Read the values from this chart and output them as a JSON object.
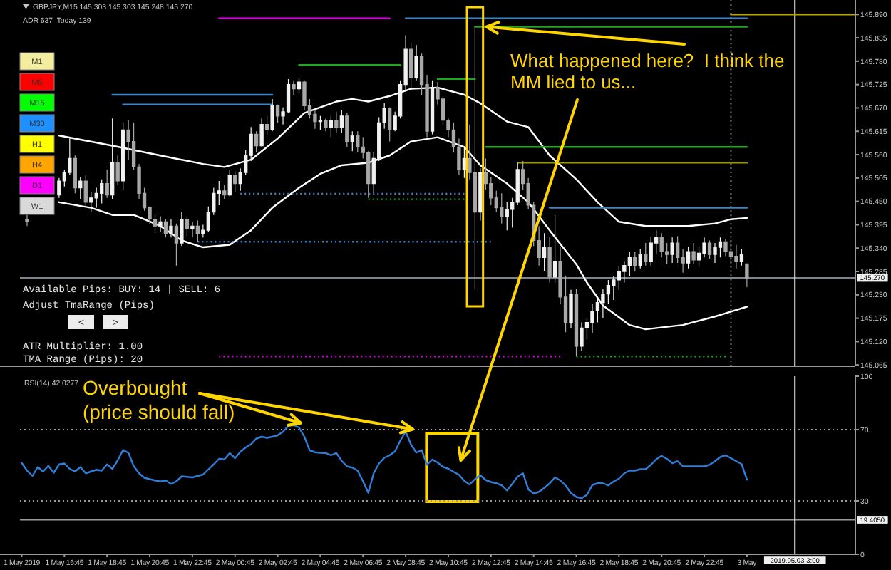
{
  "chart_data": [
    {
      "type": "candlestick",
      "title": "GBPJPY,M15 145.303 145.303 145.248 145.270",
      "subtitle": "ADR 637  Today 139",
      "x": [
        "2019-05-01T15:00",
        "2019-05-01T16:30",
        "2019-05-01T16:45",
        "2019-05-01T17:00",
        "2019-05-01T17:15",
        "2019-05-01T17:30",
        "2019-05-01T17:45",
        "2019-05-01T18:00",
        "2019-05-01T18:15",
        "2019-05-01T18:30",
        "2019-05-01T18:45",
        "2019-05-01T19:00",
        "2019-05-01T19:15",
        "2019-05-01T19:30",
        "2019-05-01T19:45",
        "2019-05-01T20:00",
        "2019-05-01T20:15",
        "2019-05-01T20:30",
        "2019-05-01T20:45",
        "2019-05-01T21:00",
        "2019-05-01T21:15",
        "2019-05-01T21:30",
        "2019-05-01T21:45",
        "2019-05-01T22:00",
        "2019-05-01T22:15",
        "2019-05-01T22:30",
        "2019-05-01T22:45",
        "2019-05-01T23:00",
        "2019-05-01T23:15",
        "2019-05-01T23:30",
        "2019-05-01T23:45",
        "2019-05-02T00:00",
        "2019-05-02T00:15",
        "2019-05-02T00:30",
        "2019-05-02T00:45",
        "2019-05-02T01:00",
        "2019-05-02T01:15",
        "2019-05-02T01:30",
        "2019-05-02T01:45",
        "2019-05-02T02:00",
        "2019-05-02T02:15",
        "2019-05-02T02:30",
        "2019-05-02T02:45",
        "2019-05-02T03:00",
        "2019-05-02T03:15",
        "2019-05-02T03:30",
        "2019-05-02T03:45",
        "2019-05-02T04:00",
        "2019-05-02T04:15",
        "2019-05-02T04:30",
        "2019-05-02T04:45",
        "2019-05-02T05:00",
        "2019-05-02T05:15",
        "2019-05-02T05:30",
        "2019-05-02T05:45",
        "2019-05-02T06:00",
        "2019-05-02T06:15",
        "2019-05-02T06:30",
        "2019-05-02T06:45",
        "2019-05-02T07:00",
        "2019-05-02T07:15",
        "2019-05-02T07:30",
        "2019-05-02T07:45",
        "2019-05-02T08:00",
        "2019-05-02T08:15",
        "2019-05-02T08:30",
        "2019-05-02T08:45",
        "2019-05-02T09:00",
        "2019-05-02T09:15",
        "2019-05-02T09:30",
        "2019-05-02T09:45",
        "2019-05-02T10:00",
        "2019-05-02T10:15",
        "2019-05-02T10:30",
        "2019-05-02T10:45",
        "2019-05-02T11:00",
        "2019-05-02T11:15",
        "2019-05-02T11:30",
        "2019-05-02T11:45",
        "2019-05-02T12:00",
        "2019-05-02T12:15",
        "2019-05-02T12:30",
        "2019-05-02T12:45",
        "2019-05-02T13:00",
        "2019-05-02T13:15",
        "2019-05-02T13:30",
        "2019-05-02T13:45",
        "2019-05-02T14:00",
        "2019-05-02T14:15",
        "2019-05-02T14:30",
        "2019-05-02T14:45",
        "2019-05-02T15:00",
        "2019-05-02T15:15",
        "2019-05-02T15:30",
        "2019-05-02T15:45",
        "2019-05-02T16:00",
        "2019-05-02T16:15",
        "2019-05-02T16:30",
        "2019-05-02T16:45",
        "2019-05-02T17:00",
        "2019-05-02T17:15",
        "2019-05-02T17:30",
        "2019-05-02T17:45",
        "2019-05-02T18:00",
        "2019-05-02T18:15",
        "2019-05-02T18:30",
        "2019-05-02T18:45",
        "2019-05-02T19:00",
        "2019-05-02T19:15",
        "2019-05-02T19:30",
        "2019-05-02T19:45",
        "2019-05-02T20:00",
        "2019-05-02T20:15",
        "2019-05-02T20:30",
        "2019-05-02T20:45",
        "2019-05-02T21:00",
        "2019-05-02T21:15",
        "2019-05-02T21:30",
        "2019-05-02T21:45",
        "2019-05-02T22:00",
        "2019-05-02T22:15",
        "2019-05-02T22:30",
        "2019-05-02T22:45",
        "2019-05-02T23:00",
        "2019-05-02T23:15",
        "2019-05-02T23:30",
        "2019-05-02T23:45",
        "2019-05-03T00:00",
        "2019-05-03T00:15",
        "2019-05-03T00:30",
        "2019-05-03T00:45"
      ],
      "ohlc": [
        [
          145.408,
          145.418,
          145.392,
          145.402
        ],
        [
          145.465,
          145.505,
          145.458,
          145.498
        ],
        [
          145.498,
          145.525,
          145.485,
          145.518
        ],
        [
          145.518,
          145.601,
          145.512,
          145.551
        ],
        [
          145.551,
          145.558,
          145.469,
          145.482
        ],
        [
          145.482,
          145.508,
          145.455,
          145.498
        ],
        [
          145.498,
          145.512,
          145.438,
          145.448
        ],
        [
          145.448,
          145.472,
          145.425,
          145.458
        ],
        [
          145.458,
          145.482,
          145.435,
          145.469
        ],
        [
          145.469,
          145.502,
          145.445,
          145.492
        ],
        [
          145.492,
          145.525,
          145.458,
          145.465
        ],
        [
          145.465,
          145.645,
          145.455,
          145.541
        ],
        [
          145.541,
          145.558,
          145.488,
          145.498
        ],
        [
          145.498,
          145.635,
          145.478,
          145.618
        ],
        [
          145.618,
          145.641,
          145.548,
          145.591
        ],
        [
          145.591,
          145.635,
          145.525,
          145.531
        ],
        [
          145.531,
          145.538,
          145.455,
          145.469
        ],
        [
          145.469,
          145.482,
          145.428,
          145.435
        ],
        [
          145.435,
          145.438,
          145.398,
          145.408
        ],
        [
          145.408,
          145.421,
          145.375,
          145.392
        ],
        [
          145.392,
          145.415,
          145.378,
          145.402
        ],
        [
          145.402,
          145.408,
          145.365,
          145.375
        ],
        [
          145.375,
          145.408,
          145.365,
          145.392
        ],
        [
          145.392,
          145.398,
          145.299,
          145.352
        ],
        [
          145.352,
          145.425,
          145.345,
          145.408
        ],
        [
          145.408,
          145.415,
          145.368,
          145.385
        ],
        [
          145.385,
          145.402,
          145.365,
          145.392
        ],
        [
          145.392,
          145.405,
          145.355,
          145.375
        ],
        [
          145.375,
          145.395,
          145.365,
          145.382
        ],
        [
          145.382,
          145.438,
          145.378,
          145.425
        ],
        [
          145.425,
          145.482,
          145.418,
          145.469
        ],
        [
          145.469,
          145.498,
          145.441,
          145.475
        ],
        [
          145.475,
          145.488,
          145.455,
          145.465
        ],
        [
          145.465,
          145.525,
          145.462,
          145.512
        ],
        [
          145.512,
          145.521,
          145.472,
          145.492
        ],
        [
          145.492,
          145.528,
          145.475,
          145.518
        ],
        [
          145.518,
          145.571,
          145.512,
          145.558
        ],
        [
          145.558,
          145.625,
          145.545,
          145.608
        ],
        [
          145.608,
          145.615,
          145.565,
          145.581
        ],
        [
          145.581,
          145.645,
          145.578,
          145.631
        ],
        [
          145.631,
          145.651,
          145.605,
          145.618
        ],
        [
          145.618,
          145.691,
          145.615,
          145.675
        ],
        [
          145.675,
          145.678,
          145.635,
          145.651
        ],
        [
          145.651,
          145.671,
          145.631,
          145.661
        ],
        [
          145.661,
          145.738,
          145.658,
          145.725
        ],
        [
          145.725,
          145.735,
          145.701,
          145.715
        ],
        [
          145.715,
          145.741,
          145.705,
          145.731
        ],
        [
          145.731,
          145.735,
          145.665,
          145.675
        ],
        [
          145.675,
          145.691,
          145.645,
          145.655
        ],
        [
          145.655,
          145.665,
          145.621,
          145.638
        ],
        [
          145.638,
          145.651,
          145.618,
          145.641
        ],
        [
          145.641,
          145.645,
          145.615,
          145.625
        ],
        [
          145.625,
          145.651,
          145.601,
          145.641
        ],
        [
          145.641,
          145.661,
          145.611,
          145.625
        ],
        [
          145.625,
          145.665,
          145.611,
          145.651
        ],
        [
          145.651,
          145.658,
          145.578,
          145.591
        ],
        [
          145.591,
          145.615,
          145.568,
          145.605
        ],
        [
          145.605,
          145.615,
          145.565,
          145.578
        ],
        [
          145.578,
          145.601,
          145.551,
          145.565
        ],
        [
          145.565,
          145.568,
          145.458,
          145.492
        ],
        [
          145.492,
          145.565,
          145.469,
          145.551
        ],
        [
          145.551,
          145.648,
          145.545,
          145.635
        ],
        [
          145.635,
          145.681,
          145.621,
          145.668
        ],
        [
          145.668,
          145.671,
          145.591,
          145.618
        ],
        [
          145.618,
          145.661,
          145.615,
          145.651
        ],
        [
          145.651,
          145.735,
          145.645,
          145.725
        ],
        [
          145.725,
          145.841,
          145.708,
          145.808
        ],
        [
          145.808,
          145.824,
          145.715,
          145.741
        ],
        [
          145.741,
          145.818,
          145.735,
          145.791
        ],
        [
          145.791,
          145.798,
          145.701,
          145.725
        ],
        [
          145.725,
          145.748,
          145.601,
          145.615
        ],
        [
          145.615,
          145.735,
          145.608,
          145.718
        ],
        [
          145.718,
          145.731,
          145.678,
          145.691
        ],
        [
          145.691,
          145.698,
          145.631,
          145.641
        ],
        [
          145.641,
          145.645,
          145.601,
          145.618
        ],
        [
          145.618,
          145.635,
          145.565,
          145.578
        ],
        [
          145.578,
          145.598,
          145.512,
          145.525
        ],
        [
          145.525,
          145.575,
          145.505,
          145.551
        ],
        [
          145.551,
          145.631,
          145.502,
          145.518
        ],
        [
          145.518,
          145.861,
          145.242,
          145.425
        ],
        [
          145.425,
          145.528,
          145.405,
          145.518
        ],
        [
          145.518,
          145.551,
          145.478,
          145.492
        ],
        [
          145.492,
          145.508,
          145.441,
          145.458
        ],
        [
          145.458,
          145.475,
          145.425,
          145.435
        ],
        [
          145.435,
          145.469,
          145.398,
          145.415
        ],
        [
          145.415,
          145.448,
          145.382,
          145.431
        ],
        [
          145.431,
          145.458,
          145.388,
          145.448
        ],
        [
          145.448,
          145.541,
          145.441,
          145.525
        ],
        [
          145.525,
          145.545,
          145.478,
          145.492
        ],
        [
          145.492,
          145.505,
          145.431,
          145.441
        ],
        [
          145.441,
          145.448,
          145.345,
          145.358
        ],
        [
          145.358,
          145.392,
          145.299,
          145.318
        ],
        [
          145.318,
          145.375,
          145.285,
          145.342
        ],
        [
          145.342,
          145.365,
          145.259,
          145.272
        ],
        [
          145.272,
          145.418,
          145.259,
          145.308
        ],
        [
          145.308,
          145.342,
          145.208,
          145.225
        ],
        [
          145.225,
          145.275,
          145.142,
          145.165
        ],
        [
          145.165,
          145.242,
          145.152,
          145.232
        ],
        [
          145.232,
          145.245,
          145.085,
          145.109
        ],
        [
          145.109,
          145.165,
          145.099,
          145.152
        ],
        [
          145.152,
          145.175,
          145.125,
          145.165
        ],
        [
          145.165,
          145.208,
          145.139,
          145.192
        ],
        [
          145.192,
          145.225,
          145.165,
          145.212
        ],
        [
          145.212,
          145.245,
          145.175,
          145.232
        ],
        [
          145.232,
          145.265,
          145.208,
          145.252
        ],
        [
          145.252,
          145.275,
          145.218,
          145.265
        ],
        [
          145.265,
          145.299,
          145.242,
          145.285
        ],
        [
          145.285,
          145.308,
          145.259,
          145.299
        ],
        [
          145.299,
          145.332,
          145.275,
          145.318
        ],
        [
          145.318,
          145.332,
          145.285,
          145.299
        ],
        [
          145.299,
          145.338,
          145.292,
          145.325
        ],
        [
          145.325,
          145.352,
          145.299,
          145.308
        ],
        [
          145.308,
          145.365,
          145.299,
          145.352
        ],
        [
          145.352,
          145.382,
          145.325,
          145.365
        ],
        [
          145.365,
          145.375,
          145.318,
          145.332
        ],
        [
          145.332,
          145.352,
          145.302,
          145.325
        ],
        [
          145.325,
          145.365,
          145.305,
          145.352
        ],
        [
          145.352,
          145.368,
          145.305,
          145.318
        ],
        [
          145.318,
          145.338,
          145.282,
          145.305
        ],
        [
          145.305,
          145.342,
          145.292,
          145.332
        ],
        [
          145.332,
          145.352,
          145.302,
          145.312
        ],
        [
          145.312,
          145.342,
          145.299,
          145.328
        ],
        [
          145.328,
          145.365,
          145.318,
          145.352
        ],
        [
          145.352,
          145.358,
          145.315,
          145.325
        ],
        [
          145.325,
          145.352,
          145.305,
          145.342
        ],
        [
          145.342,
          145.365,
          145.318,
          145.355
        ],
        [
          145.355,
          145.362,
          145.321,
          145.332
        ],
        [
          145.332,
          145.358,
          145.305,
          145.321
        ],
        [
          145.321,
          145.348,
          145.292,
          145.308
        ],
        [
          145.308,
          145.338,
          145.299,
          145.325
        ],
        [
          145.303,
          145.303,
          145.248,
          145.27
        ]
      ],
      "colors": [
        "#a8a8a8",
        "#f2f2f2",
        "#f2f2f2",
        "#f2f2f2",
        "#a8a8a8",
        "#f2f2f2",
        "#a8a8a8",
        "#f2f2f2",
        "#f2f2f2",
        "#f2f2f2",
        "#a8a8a8",
        "#f2f2f2",
        "#a8a8a8",
        "#f2f2f2",
        "#a8a8a8",
        "#a8a8a8",
        "#a8a8a8",
        "#a8a8a8",
        "#a8a8a8",
        "#a8a8a8",
        "#f2f2f2",
        "#a8a8a8",
        "#f2f2f2",
        "#a8a8a8",
        "#f2f2f2",
        "#a8a8a8",
        "#f2f2f2",
        "#a8a8a8",
        "#f2f2f2",
        "#f2f2f2",
        "#f2f2f2",
        "#f2f2f2",
        "#a8a8a8",
        "#f2f2f2",
        "#a8a8a8",
        "#f2f2f2",
        "#f2f2f2",
        "#f2f2f2",
        "#a8a8a8",
        "#f2f2f2",
        "#a8a8a8",
        "#f2f2f2",
        "#a8a8a8",
        "#f2f2f2",
        "#f2f2f2",
        "#a8a8a8",
        "#f2f2f2",
        "#a8a8a8",
        "#a8a8a8",
        "#a8a8a8",
        "#f2f2f2",
        "#a8a8a8",
        "#f2f2f2",
        "#a8a8a8",
        "#f2f2f2",
        "#a8a8a8",
        "#f2f2f2",
        "#a8a8a8",
        "#a8a8a8",
        "#a8a8a8",
        "#f2f2f2",
        "#f2f2f2",
        "#f2f2f2",
        "#a8a8a8",
        "#f2f2f2",
        "#f2f2f2",
        "#f2f2f2",
        "#a8a8a8",
        "#f2f2f2",
        "#a8a8a8",
        "#a8a8a8",
        "#f2f2f2",
        "#a8a8a8",
        "#a8a8a8",
        "#a8a8a8",
        "#a8a8a8",
        "#a8a8a8",
        "#f2f2f2",
        "#a8a8a8",
        "#a8a8a8",
        "#f2f2f2",
        "#a8a8a8",
        "#a8a8a8",
        "#a8a8a8",
        "#a8a8a8",
        "#f2f2f2",
        "#f2f2f2",
        "#f2f2f2",
        "#a8a8a8",
        "#a8a8a8",
        "#a8a8a8",
        "#a8a8a8",
        "#f2f2f2",
        "#a8a8a8",
        "#f2f2f2",
        "#a8a8a8",
        "#a8a8a8",
        "#f2f2f2",
        "#a8a8a8",
        "#f2f2f2",
        "#f2f2f2",
        "#f2f2f2",
        "#f2f2f2",
        "#f2f2f2",
        "#f2f2f2",
        "#f2f2f2",
        "#f2f2f2",
        "#f2f2f2",
        "#f2f2f2",
        "#a8a8a8",
        "#f2f2f2",
        "#a8a8a8",
        "#f2f2f2",
        "#f2f2f2",
        "#a8a8a8",
        "#a8a8a8",
        "#f2f2f2",
        "#a8a8a8",
        "#a8a8a8",
        "#f2f2f2",
        "#a8a8a8",
        "#f2f2f2",
        "#f2f2f2",
        "#a8a8a8",
        "#f2f2f2",
        "#f2f2f2",
        "#a8a8a8",
        "#a8a8a8",
        "#a8a8a8",
        "#f2f2f2",
        "#a8a8a8"
      ],
      "series": [
        {
          "type": "line",
          "color": "#ffffff",
          "x": [
            "2019-05-01T16:30",
            "2019-05-01T19:00",
            "2019-05-01T21:15",
            "2019-05-01T23:15",
            "2019-05-02T00:15",
            "2019-05-02T01:30",
            "2019-05-02T02:45",
            "2019-05-02T04:00",
            "2019-05-02T05:30",
            "2019-05-02T06:15",
            "2019-05-02T07:00",
            "2019-05-02T08:00",
            "2019-05-02T09:00",
            "2019-05-02T10:15",
            "2019-05-02T11:30",
            "2019-05-02T12:15",
            "2019-05-02T13:30",
            "2019-05-02T14:30",
            "2019-05-02T15:30",
            "2019-05-02T16:45",
            "2019-05-02T17:45",
            "2019-05-02T18:45",
            "2019-05-02T20:00",
            "2019-05-02T21:00",
            "2019-05-02T22:00",
            "2019-05-02T23:15",
            "2019-05-03T00:00",
            "2019-05-03T00:45"
          ],
          "values": [
            145.605,
            145.581,
            145.558,
            145.538,
            145.531,
            145.548,
            145.598,
            145.658,
            145.685,
            145.691,
            145.685,
            145.698,
            145.715,
            145.718,
            145.701,
            145.681,
            145.638,
            145.625,
            145.558,
            145.502,
            145.448,
            145.402,
            145.392,
            145.392,
            145.392,
            145.398,
            145.408,
            145.411
          ]
        },
        {
          "type": "line",
          "color": "#ffffff",
          "x": [
            "2019-05-01T16:30",
            "2019-05-01T18:00",
            "2019-05-01T19:00",
            "2019-05-01T20:00",
            "2019-05-01T21:15",
            "2019-05-01T22:15",
            "2019-05-01T23:15",
            "2019-05-02T00:30",
            "2019-05-02T01:30",
            "2019-05-02T02:30",
            "2019-05-02T03:45",
            "2019-05-02T04:45",
            "2019-05-02T05:45",
            "2019-05-02T07:00",
            "2019-05-02T08:00",
            "2019-05-02T09:00",
            "2019-05-02T10:15",
            "2019-05-02T11:30",
            "2019-05-02T12:15",
            "2019-05-02T13:30",
            "2019-05-02T14:30",
            "2019-05-02T15:30",
            "2019-05-02T16:45",
            "2019-05-02T17:15",
            "2019-05-02T18:00",
            "2019-05-02T19:15",
            "2019-05-02T20:00",
            "2019-05-02T21:45",
            "2019-05-02T23:15",
            "2019-05-03T00:45"
          ],
          "values": [
            145.448,
            145.435,
            145.418,
            145.418,
            145.392,
            145.358,
            145.342,
            145.348,
            145.382,
            145.435,
            145.482,
            145.515,
            145.535,
            145.541,
            145.558,
            145.591,
            145.601,
            145.578,
            145.535,
            145.492,
            145.448,
            145.382,
            145.302,
            145.259,
            145.205,
            145.159,
            145.149,
            145.159,
            145.179,
            145.202
          ]
        },
        {
          "type": "line",
          "color": "#e000e0",
          "x": [
            "2019-05-02T00:00",
            "2019-05-02T08:00"
          ],
          "values": [
            145.881,
            145.881
          ]
        },
        {
          "type": "line",
          "color": "#3d85c6",
          "x": [
            "2019-05-02T08:45",
            "2019-05-03T00:45"
          ],
          "values": [
            145.881,
            145.881
          ]
        },
        {
          "type": "line",
          "color": "#1fa81f",
          "x": [
            "2019-05-02T12:00",
            "2019-05-03T00:45"
          ],
          "values": [
            145.861,
            145.861
          ]
        },
        {
          "type": "line",
          "color": "#1fa81f",
          "x": [
            "2019-05-02T03:45",
            "2019-05-02T08:30"
          ],
          "values": [
            145.771,
            145.771
          ]
        },
        {
          "type": "line",
          "color": "#3d85c6",
          "x": [
            "2019-05-01T19:00",
            "2019-05-02T02:30"
          ],
          "values": [
            145.701,
            145.701
          ]
        },
        {
          "type": "line",
          "color": "#3d85c6",
          "x": [
            "2019-05-01T19:30",
            "2019-05-02T02:30"
          ],
          "values": [
            145.678,
            145.678
          ]
        },
        {
          "type": "line",
          "color": "#1fa81f",
          "x": [
            "2019-05-02T10:15",
            "2019-05-02T12:00"
          ],
          "values": [
            145.738,
            145.738
          ]
        },
        {
          "type": "line",
          "color": "#1fa81f",
          "x": [
            "2019-05-02T12:30",
            "2019-05-03T00:45"
          ],
          "values": [
            145.578,
            145.578
          ]
        },
        {
          "type": "line",
          "color": "#9a9600",
          "x": [
            "2019-05-02T14:00",
            "2019-05-03T00:45"
          ],
          "values": [
            145.541,
            145.541
          ]
        },
        {
          "type": "line",
          "color": "#3d85c6",
          "x": [
            "2019-05-02T15:30",
            "2019-05-03T00:45"
          ],
          "values": [
            145.435,
            145.435
          ]
        },
        {
          "type": "line",
          "color": "#3d85c6",
          "line_style": "dotted",
          "x": [
            "2019-05-02T01:00",
            "2019-05-02T11:30"
          ],
          "values": [
            145.468,
            145.468
          ]
        },
        {
          "type": "line",
          "color": "#3d85c6",
          "line_style": "dotted",
          "x": [
            "2019-05-01T23:00",
            "2019-05-02T12:45"
          ],
          "values": [
            145.355,
            145.355
          ]
        },
        {
          "type": "line",
          "color": "#1fa81f",
          "line_style": "dotted",
          "x": [
            "2019-05-02T07:00",
            "2019-05-02T11:30"
          ],
          "values": [
            145.455,
            145.455
          ]
        },
        {
          "type": "line",
          "color": "#1fa81f",
          "line_style": "dotted",
          "x": [
            "2019-05-02T16:45",
            "2019-05-02T23:45"
          ],
          "values": [
            145.085,
            145.085
          ]
        },
        {
          "type": "line",
          "color": "#e000e0",
          "line_style": "dotted",
          "x": [
            "2019-05-02T00:00",
            "2019-05-02T16:00"
          ],
          "values": [
            145.085,
            145.085
          ]
        },
        {
          "type": "line",
          "color": "#b4a400",
          "x": [
            "2019-05-03T00:00",
            "2019-05-03T05:50"
          ],
          "values": [
            145.89,
            145.89
          ]
        }
      ],
      "xlim": [
        "2019-05-01T14:40",
        "2019-05-03T05:50"
      ],
      "ylim": [
        145.062,
        145.924
      ],
      "yticks": [
        145.065,
        {
          "value": 145.12,
          "label": "145.120"
        },
        145.175,
        {
          "value": 145.23,
          "label": "145.230"
        },
        145.285,
        {
          "value": 145.34,
          "label": "145.340"
        },
        145.395,
        {
          "value": 145.45,
          "label": "145.450"
        },
        145.505,
        {
          "value": 145.56,
          "label": "145.560"
        },
        145.615,
        {
          "value": 145.67,
          "label": "145.670"
        },
        145.725,
        {
          "value": 145.78,
          "label": "145.780"
        },
        145.835,
        {
          "value": 145.89,
          "label": "145.890"
        }
      ],
      "tick_labels": "y",
      "ref_lines": [
        {
          "axis": "y",
          "value": 145.27,
          "label": "145.270",
          "color": "#7a8590"
        },
        {
          "axis": "x",
          "value": "2019-05-03T00:00",
          "color": "#8a8a8a",
          "line_style": "dotted"
        },
        {
          "axis": "x",
          "value": "2019-05-03T03:00",
          "color": "#e6e6e6"
        }
      ],
      "annotations": [
        "M1",
        "M5",
        "M15",
        "M30",
        "H1",
        "H4",
        "D1",
        "W1",
        "Available Pips: BUY: 14 | SELL: 6",
        "Adjust TmaRange (Pips)",
        "<",
        ">",
        "ATR Multiplier: 1.00",
        "TMA Range (Pips): 20",
        {
          "text": "What happened here?  I think the MM lied to us...",
          "x": "2019-05-02T12:00",
          "y": 145.861
        }
      ]
    },
    {
      "type": "line",
      "title": "RSI(14) 42.0277",
      "x": [
        "2019-05-01T14:45",
        "2019-05-01T15:00",
        "2019-05-01T15:15",
        "2019-05-01T15:30",
        "2019-05-01T15:45",
        "2019-05-01T16:00",
        "2019-05-01T16:15",
        "2019-05-01T16:30",
        "2019-05-01T16:45",
        "2019-05-01T17:00",
        "2019-05-01T17:15",
        "2019-05-01T17:30",
        "2019-05-01T17:45",
        "2019-05-01T18:00",
        "2019-05-01T18:15",
        "2019-05-01T18:30",
        "2019-05-01T18:45",
        "2019-05-01T19:00",
        "2019-05-01T19:15",
        "2019-05-01T19:30",
        "2019-05-01T19:45",
        "2019-05-01T20:00",
        "2019-05-01T20:15",
        "2019-05-01T20:30",
        "2019-05-01T20:45",
        "2019-05-01T21:00",
        "2019-05-01T21:15",
        "2019-05-01T21:30",
        "2019-05-01T21:45",
        "2019-05-01T22:00",
        "2019-05-01T22:15",
        "2019-05-01T22:30",
        "2019-05-01T22:45",
        "2019-05-01T23:00",
        "2019-05-01T23:15",
        "2019-05-01T23:30",
        "2019-05-01T23:45",
        "2019-05-02T00:00",
        "2019-05-02T00:15",
        "2019-05-02T00:30",
        "2019-05-02T00:45",
        "2019-05-02T01:00",
        "2019-05-02T01:15",
        "2019-05-02T01:30",
        "2019-05-02T01:45",
        "2019-05-02T02:00",
        "2019-05-02T02:15",
        "2019-05-02T02:30",
        "2019-05-02T02:45",
        "2019-05-02T03:00",
        "2019-05-02T03:15",
        "2019-05-02T03:30",
        "2019-05-02T03:45",
        "2019-05-02T04:00",
        "2019-05-02T04:15",
        "2019-05-02T04:30",
        "2019-05-02T04:45",
        "2019-05-02T05:00",
        "2019-05-02T05:15",
        "2019-05-02T05:30",
        "2019-05-02T05:45",
        "2019-05-02T06:00",
        "2019-05-02T06:15",
        "2019-05-02T06:30",
        "2019-05-02T06:45",
        "2019-05-02T07:00",
        "2019-05-02T07:15",
        "2019-05-02T07:30",
        "2019-05-02T07:45",
        "2019-05-02T08:00",
        "2019-05-02T08:15",
        "2019-05-02T08:30",
        "2019-05-02T08:45",
        "2019-05-02T09:00",
        "2019-05-02T09:15",
        "2019-05-02T09:30",
        "2019-05-02T09:45",
        "2019-05-02T10:00",
        "2019-05-02T10:15",
        "2019-05-02T10:30",
        "2019-05-02T10:45",
        "2019-05-02T11:00",
        "2019-05-02T11:15",
        "2019-05-02T11:30",
        "2019-05-02T11:45",
        "2019-05-02T12:00",
        "2019-05-02T12:15",
        "2019-05-02T12:30",
        "2019-05-02T12:45",
        "2019-05-02T13:00",
        "2019-05-02T13:15",
        "2019-05-02T13:30",
        "2019-05-02T13:45",
        "2019-05-02T14:00",
        "2019-05-02T14:15",
        "2019-05-02T14:30",
        "2019-05-02T14:45",
        "2019-05-02T15:00",
        "2019-05-02T15:15",
        "2019-05-02T15:30",
        "2019-05-02T15:45",
        "2019-05-02T16:00",
        "2019-05-02T16:15",
        "2019-05-02T16:30",
        "2019-05-02T16:45",
        "2019-05-02T17:00",
        "2019-05-02T17:15",
        "2019-05-02T17:30",
        "2019-05-02T17:45",
        "2019-05-02T18:00",
        "2019-05-02T18:15",
        "2019-05-02T18:30",
        "2019-05-02T18:45",
        "2019-05-02T19:00",
        "2019-05-02T19:15",
        "2019-05-02T19:30",
        "2019-05-02T19:45",
        "2019-05-02T20:00",
        "2019-05-02T20:15",
        "2019-05-02T20:30",
        "2019-05-02T20:45",
        "2019-05-02T21:00",
        "2019-05-02T21:15",
        "2019-05-02T21:30",
        "2019-05-02T21:45",
        "2019-05-02T22:00",
        "2019-05-02T22:15",
        "2019-05-02T22:30",
        "2019-05-02T22:45",
        "2019-05-02T23:00",
        "2019-05-02T23:15",
        "2019-05-02T23:30",
        "2019-05-02T23:45",
        "2019-05-03T00:00",
        "2019-05-03T00:15",
        "2019-05-03T00:30",
        "2019-05-03T00:45"
      ],
      "series": [
        {
          "color": "#2f7ed8",
          "values": [
            51.3,
            47,
            44,
            49,
            46.5,
            49.7,
            45.8,
            50.5,
            51,
            48,
            46.5,
            49,
            45.5,
            46.5,
            47.5,
            47,
            50.5,
            48,
            52.8,
            58.6,
            57,
            49.5,
            45.5,
            43,
            42.2,
            41.5,
            40.9,
            41.5,
            39.5,
            41,
            43.8,
            43.5,
            43.2,
            44,
            44.8,
            47.7,
            50.5,
            53.6,
            53.3,
            56.8,
            54,
            57.6,
            60,
            61.8,
            65,
            66,
            65.4,
            66,
            66.8,
            68.8,
            72.1,
            72.5,
            71.2,
            66,
            58.4,
            57.3,
            57,
            56.9,
            55.6,
            56.9,
            52.5,
            49.4,
            48.7,
            47,
            41,
            34.5,
            45.5,
            51,
            54.2,
            55.6,
            57.8,
            63.8,
            69,
            61.6,
            57.1,
            58.5,
            50.3,
            53.2,
            51.5,
            49.1,
            48.1,
            46.3,
            44.7,
            41.2,
            39.2,
            42.2,
            44.4,
            41.7,
            40.6,
            39.9,
            38.8,
            35.8,
            39.6,
            43.7,
            45.5,
            36.5,
            34.1,
            35.1,
            37.3,
            39.8,
            43.2,
            41.5,
            38.6,
            34.4,
            32.2,
            31.5,
            33.4,
            38.9,
            39.9,
            39.9,
            38.7,
            40.9,
            42.5,
            45.5,
            47,
            47,
            47.8,
            47.8,
            50.3,
            53.4,
            55.3,
            53.6,
            51.2,
            52.3,
            49.4,
            49.4,
            49.4,
            49.4,
            49.4,
            50.3,
            52.3,
            54.6,
            55.6,
            54,
            52.3,
            50.7,
            42
          ]
        }
      ],
      "xlim": [
        "2019-05-01T14:40",
        "2019-05-03T05:50"
      ],
      "ylim": [
        0,
        100
      ],
      "yticks": [
        0,
        30,
        70,
        100
      ],
      "xticks": [
        {
          "value": "2019-05-01T14:45",
          "label": "1 May 2019"
        },
        {
          "value": "2019-05-01T16:45",
          "label": "1 May 16:45"
        },
        {
          "value": "2019-05-01T18:45",
          "label": "1 May 18:45"
        },
        {
          "value": "2019-05-01T20:45",
          "label": "1 May 20:45"
        },
        {
          "value": "2019-05-01T22:45",
          "label": "1 May 22:45"
        },
        {
          "value": "2019-05-02T00:45",
          "label": "2 May 00:45"
        },
        {
          "value": "2019-05-02T02:45",
          "label": "2 May 02:45"
        },
        {
          "value": "2019-05-02T04:45",
          "label": "2 May 04:45"
        },
        {
          "value": "2019-05-02T06:45",
          "label": "2 May 06:45"
        },
        {
          "value": "2019-05-02T08:45",
          "label": "2 May 08:45"
        },
        {
          "value": "2019-05-02T10:45",
          "label": "2 May 10:45"
        },
        {
          "value": "2019-05-02T12:45",
          "label": "2 May 12:45"
        },
        {
          "value": "2019-05-02T14:45",
          "label": "2 May 14:45"
        },
        {
          "value": "2019-05-02T16:45",
          "label": "2 May 16:45"
        },
        {
          "value": "2019-05-02T18:45",
          "label": "2 May 18:45"
        },
        {
          "value": "2019-05-02T20:45",
          "label": "2 May 20:45"
        },
        {
          "value": "2019-05-02T22:45",
          "label": "2 May 22:45"
        },
        {
          "value": "2019-05-03T00:45",
          "label": "3 May"
        }
      ],
      "ref_lines": [
        {
          "axis": "y",
          "value": 70,
          "color": "#9a9a9a",
          "line_style": "dotted"
        },
        {
          "axis": "y",
          "value": 30,
          "color": "#9a9a9a",
          "line_style": "dotted"
        },
        {
          "axis": "y",
          "value": 19.405,
          "label": "19.4050",
          "color": "#9a9a9a"
        },
        {
          "axis": "x",
          "value": "2019-05-03T03:00",
          "label": "2019.05.03 3:00",
          "color": "#e6e6e6"
        }
      ],
      "annotations": [
        {
          "text": "Overbought",
          "x": "2019-05-02T03:30",
          "y": 72.5
        },
        {
          "text": "(price should fall)",
          "x": "2019-05-02T08:45",
          "y": 69
        }
      ]
    }
  ]
}
